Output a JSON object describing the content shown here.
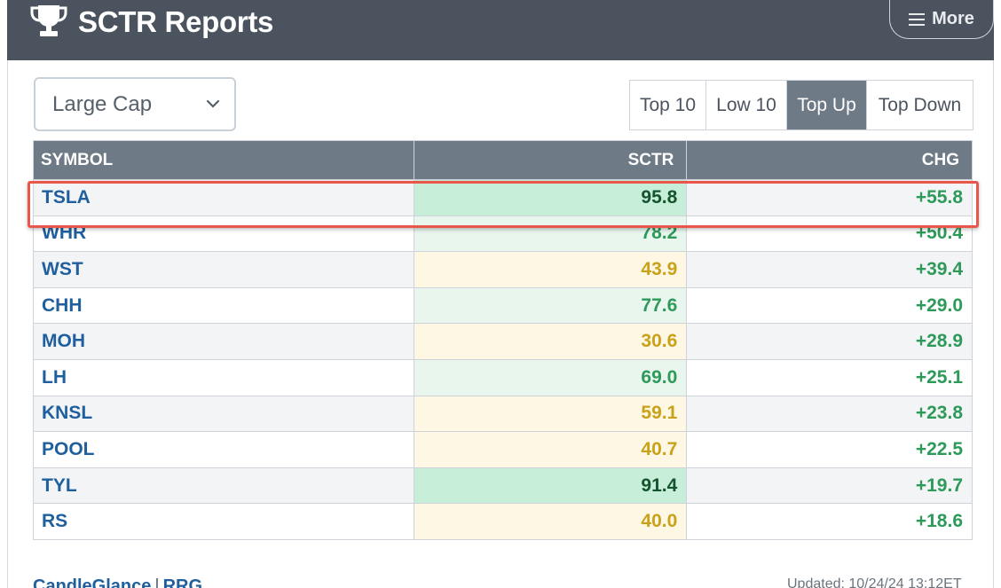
{
  "header": {
    "title": "SCTR Reports",
    "more_label": "More"
  },
  "cap_select": {
    "value": "Large Cap"
  },
  "tabs": [
    {
      "label": "Top 10",
      "active": false
    },
    {
      "label": "Low 10",
      "active": false
    },
    {
      "label": "Top Up",
      "active": true
    },
    {
      "label": "Top Down",
      "active": false
    }
  ],
  "table": {
    "columns": [
      "SYMBOL",
      "SCTR",
      "CHG"
    ],
    "rows": [
      {
        "symbol": "TSLA",
        "sctr": "95.8",
        "chg": "+55.8",
        "tier": "strong"
      },
      {
        "symbol": "WHR",
        "sctr": "78.2",
        "chg": "+50.4",
        "tier": "good"
      },
      {
        "symbol": "WST",
        "sctr": "43.9",
        "chg": "+39.4",
        "tier": "weak"
      },
      {
        "symbol": "CHH",
        "sctr": "77.6",
        "chg": "+29.0",
        "tier": "good"
      },
      {
        "symbol": "MOH",
        "sctr": "30.6",
        "chg": "+28.9",
        "tier": "weak"
      },
      {
        "symbol": "LH",
        "sctr": "69.0",
        "chg": "+25.1",
        "tier": "good"
      },
      {
        "symbol": "KNSL",
        "sctr": "59.1",
        "chg": "+23.8",
        "tier": "weak"
      },
      {
        "symbol": "POOL",
        "sctr": "40.7",
        "chg": "+22.5",
        "tier": "weak"
      },
      {
        "symbol": "TYL",
        "sctr": "91.4",
        "chg": "+19.7",
        "tier": "strong"
      },
      {
        "symbol": "RS",
        "sctr": "40.0",
        "chg": "+18.6",
        "tier": "weak"
      }
    ],
    "highlighted_symbol": "TSLA"
  },
  "tier_colors": {
    "strong": {
      "bg": "#c6eed8",
      "fg": "#14532d"
    },
    "good": {
      "bg": "#e8f6ee",
      "fg": "#2e9a5a"
    },
    "weak": {
      "bg": "#fdf7e3",
      "fg": "#c9a21a"
    }
  },
  "chg_color": "#2e9a5a",
  "footer": {
    "links": [
      "CandleGlance",
      "RRG"
    ],
    "separator": "|",
    "updated": "Updated: 10/24/24 13:12ET"
  }
}
